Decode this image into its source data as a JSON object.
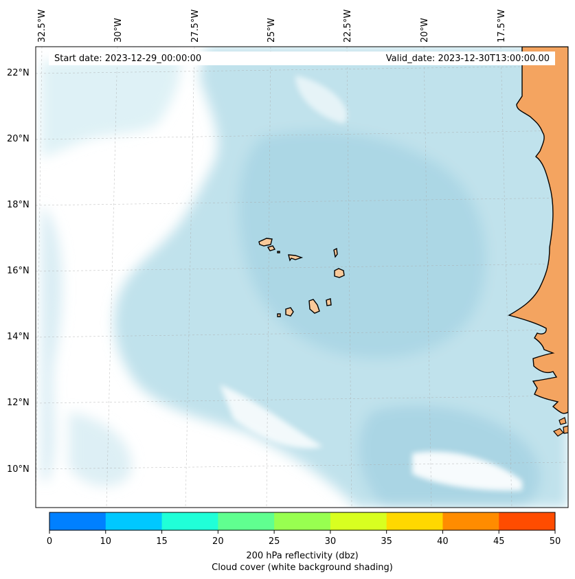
{
  "header": {
    "start_date": "Start date: 2023-12-29_00:00:00",
    "valid_date": "Valid_date: 2023-12-30T13:00:00.00"
  },
  "map": {
    "longitude_labels": [
      "32.5°W",
      "30°W",
      "27.5°W",
      "25°W",
      "22.5°W",
      "20°W",
      "17.5°W"
    ],
    "latitude_labels": [
      "22°N",
      "20°N",
      "18°N",
      "16°N",
      "14°N",
      "12°N",
      "10°N"
    ],
    "colors": {
      "ocean_cloud": "#add8e6",
      "land_africa": "#f4a460",
      "land_islands": "#f9c99a",
      "clear_sky": "#ffffff"
    }
  },
  "colorbar": {
    "ticks": [
      "0",
      "10",
      "15",
      "20",
      "25",
      "30",
      "35",
      "40",
      "45",
      "50"
    ],
    "colors": [
      "#0080ff",
      "#00c8ff",
      "#20ffd8",
      "#60ff90",
      "#98ff50",
      "#d8ff20",
      "#ffd800",
      "#ff8c00",
      "#ff4c00"
    ],
    "label_line1": "200 hPa reflectivity (dbz)",
    "label_line2": "Cloud cover (white background shading)"
  }
}
